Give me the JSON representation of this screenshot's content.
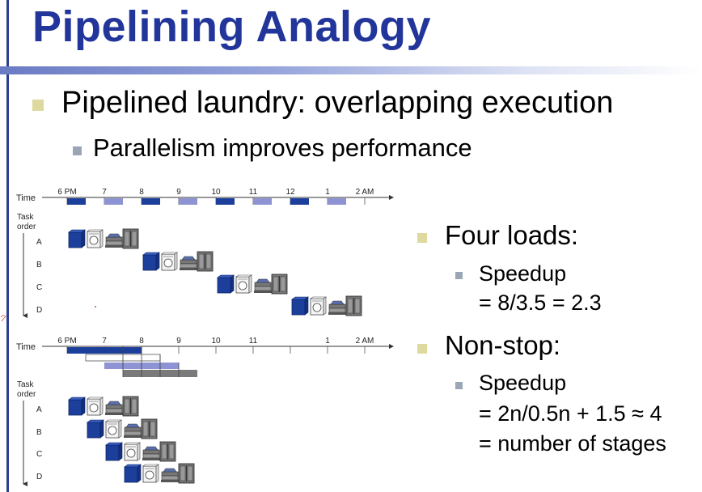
{
  "slide": {
    "title": "Pipelining Analogy",
    "bullet_main": "Pipelined laundry: overlapping execution",
    "bullet_sub": "Parallelism improves performance",
    "right_bullets": [
      {
        "heading": "Four loads:",
        "lines": [
          "Speedup",
          "= 8/3.5 = 2.3"
        ]
      },
      {
        "heading": "Non-stop:",
        "lines": [
          "Speedup",
          "= 2n/0.5n + 1.5 ≈ 4",
          "= number of stages"
        ]
      }
    ]
  },
  "diagram_top": {
    "time_label": "Time",
    "task_label_1": "Task",
    "task_label_2": "order",
    "time_ticks": [
      "6 PM",
      "7",
      "8",
      "9",
      "10",
      "11",
      "12",
      "1",
      "2 AM"
    ],
    "tasks": [
      "A",
      "B",
      "C",
      "D"
    ]
  },
  "diagram_bottom": {
    "time_label": "Time",
    "task_label_1": "Task",
    "task_label_2": "order",
    "time_ticks": [
      "6 PM",
      "7",
      "8",
      "9",
      "10",
      "11",
      "1",
      "2 AM"
    ],
    "tasks": [
      "A",
      "B",
      "C",
      "D"
    ]
  },
  "colors": {
    "title": "#22359a",
    "washer": "#1c3f9c",
    "dryer_slot": "#8e93d4",
    "folder": "#7a7a7a",
    "storer": "#777777"
  },
  "icons": [
    "washer-icon",
    "dryer-icon",
    "folder-icon",
    "closet-icon"
  ]
}
